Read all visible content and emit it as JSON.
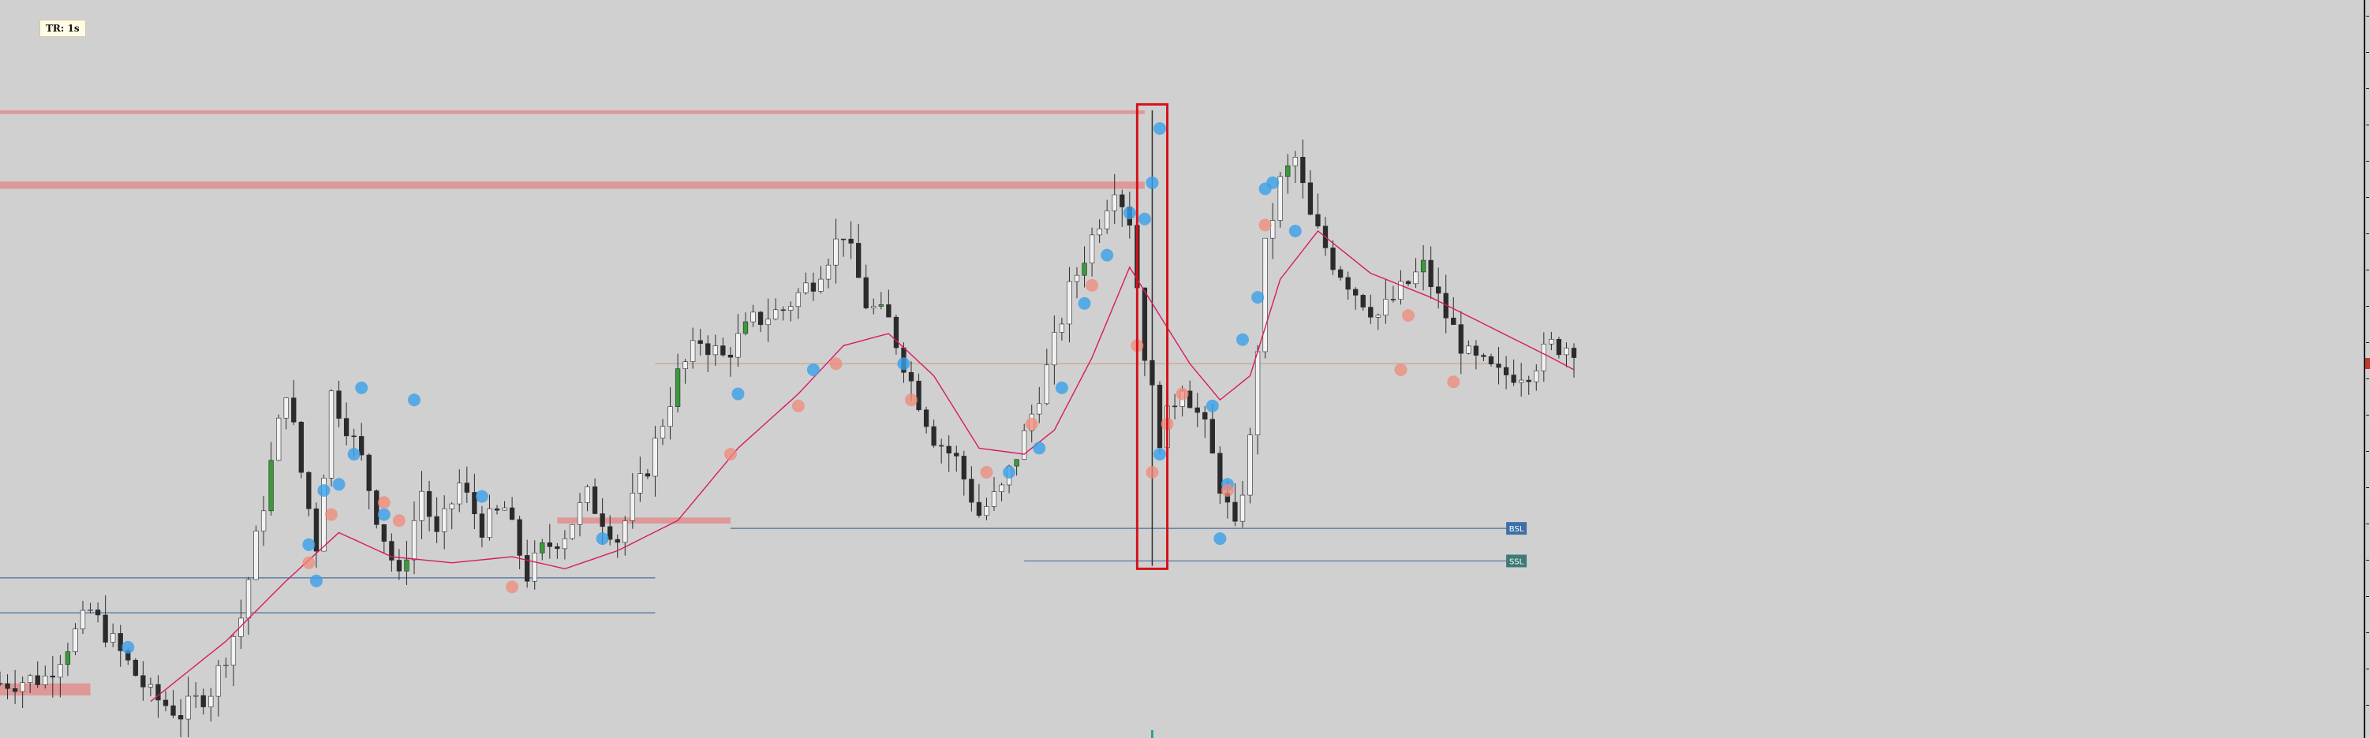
{
  "toolbar": {
    "timeframe_label": "TR: 1s"
  },
  "colors": {
    "background": "#d0d0d0",
    "candle_body": "#2b2b2b",
    "candle_up": "#3a9a3a",
    "moving_average": "#d81b60",
    "resistance_zone": "#e08e8e",
    "support_line": "#4a6f9a",
    "marker_blue": "#3aa0e8",
    "marker_red": "#f08a7a",
    "highlight_box": "#d4121a",
    "ref_line": "#c9a08a"
  },
  "levels": {
    "bsl_label": "BSL",
    "ssl_label": "SSL"
  },
  "chart_data": {
    "type": "line",
    "title": "",
    "xlabel": "",
    "ylabel": "",
    "ylim": [
      0,
      100
    ],
    "x_count": 210,
    "price_path_knots": [
      [
        0,
        5
      ],
      [
        6,
        6
      ],
      [
        12,
        17
      ],
      [
        16,
        10
      ],
      [
        20,
        3
      ],
      [
        24,
        0
      ],
      [
        28,
        4
      ],
      [
        32,
        16
      ],
      [
        35,
        35
      ],
      [
        38,
        54
      ],
      [
        40,
        40
      ],
      [
        42,
        28
      ],
      [
        44,
        53
      ],
      [
        46,
        48
      ],
      [
        48,
        42
      ],
      [
        50,
        33
      ],
      [
        53,
        22
      ],
      [
        56,
        37
      ],
      [
        58,
        29
      ],
      [
        61,
        38
      ],
      [
        64,
        31
      ],
      [
        67,
        34
      ],
      [
        70,
        23
      ],
      [
        72,
        27
      ],
      [
        75,
        30
      ],
      [
        78,
        36
      ],
      [
        82,
        29
      ],
      [
        86,
        41
      ],
      [
        90,
        56
      ],
      [
        93,
        62
      ],
      [
        96,
        59
      ],
      [
        100,
        65
      ],
      [
        104,
        67
      ],
      [
        108,
        72
      ],
      [
        112,
        80
      ],
      [
        115,
        68
      ],
      [
        118,
        65
      ],
      [
        121,
        55
      ],
      [
        124,
        46
      ],
      [
        127,
        42
      ],
      [
        130,
        33
      ],
      [
        133,
        37
      ],
      [
        136,
        46
      ],
      [
        139,
        57
      ],
      [
        142,
        70
      ],
      [
        145,
        79
      ],
      [
        148,
        88
      ],
      [
        150,
        82
      ],
      [
        152,
        60
      ],
      [
        154,
        46
      ],
      [
        157,
        55
      ],
      [
        160,
        47
      ],
      [
        162,
        38
      ],
      [
        164,
        30
      ],
      [
        166,
        45
      ],
      [
        168,
        77
      ],
      [
        170,
        88
      ],
      [
        172,
        92
      ],
      [
        174,
        82
      ],
      [
        177,
        75
      ],
      [
        180,
        70
      ],
      [
        183,
        66
      ],
      [
        186,
        70
      ],
      [
        189,
        74
      ],
      [
        192,
        66
      ],
      [
        195,
        59
      ],
      [
        199,
        56
      ],
      [
        203,
        57
      ],
      [
        206,
        61
      ],
      [
        209,
        61
      ]
    ],
    "ma_knots": [
      [
        20,
        2
      ],
      [
        30,
        12
      ],
      [
        38,
        22
      ],
      [
        45,
        30
      ],
      [
        52,
        26
      ],
      [
        60,
        25
      ],
      [
        68,
        26
      ],
      [
        75,
        24
      ],
      [
        82,
        27
      ],
      [
        90,
        32
      ],
      [
        98,
        44
      ],
      [
        106,
        53
      ],
      [
        112,
        61
      ],
      [
        118,
        63
      ],
      [
        124,
        56
      ],
      [
        130,
        44
      ],
      [
        136,
        43
      ],
      [
        140,
        47
      ],
      [
        145,
        59
      ],
      [
        150,
        74
      ],
      [
        154,
        66
      ],
      [
        158,
        58
      ],
      [
        162,
        52
      ],
      [
        166,
        56
      ],
      [
        170,
        72
      ],
      [
        175,
        80
      ],
      [
        182,
        73
      ],
      [
        190,
        69
      ],
      [
        198,
        64
      ],
      [
        206,
        59
      ],
      [
        209,
        57
      ]
    ],
    "resistance_zones": [
      {
        "x_start": 0,
        "x_end": 152,
        "y_low": 99.4,
        "y_high": 100
      },
      {
        "x_start": 0,
        "x_end": 152,
        "y_low": 87,
        "y_high": 88.2
      },
      {
        "x_start": 74,
        "x_end": 97,
        "y_low": 31.5,
        "y_high": 32.5
      },
      {
        "x_start": 0,
        "x_end": 12,
        "y_low": 3,
        "y_high": 5
      }
    ],
    "horizontal_levels": [
      {
        "name": "ref",
        "x_start": 87,
        "x_end": 199,
        "y": 58
      },
      {
        "name": "bsl",
        "x_start": 97,
        "x_end": 200,
        "y": 30.7
      },
      {
        "name": "ssl",
        "x_start": 136,
        "x_end": 200,
        "y": 25.3
      },
      {
        "name": "support-1",
        "x_start": 0,
        "x_end": 87,
        "y": 22.5
      },
      {
        "name": "support-2",
        "x_start": 0,
        "x_end": 87,
        "y": 16.7
      }
    ],
    "highlight_box": {
      "x_start": 151,
      "x_end": 155,
      "y_low": 24,
      "y_high": 101
    },
    "blue_markers": [
      [
        154,
        97
      ],
      [
        153,
        88
      ],
      [
        152,
        82
      ],
      [
        150,
        83
      ],
      [
        147,
        76
      ],
      [
        144,
        68
      ],
      [
        141,
        54
      ],
      [
        138,
        44
      ],
      [
        134,
        40
      ],
      [
        98,
        53
      ],
      [
        48,
        54
      ],
      [
        47,
        43
      ],
      [
        45,
        38
      ],
      [
        43,
        37
      ],
      [
        42,
        22
      ],
      [
        55,
        52
      ],
      [
        154,
        43
      ],
      [
        162,
        29
      ],
      [
        163,
        38
      ],
      [
        161,
        51
      ],
      [
        167,
        69
      ],
      [
        168,
        87
      ],
      [
        169,
        88
      ],
      [
        172,
        80
      ],
      [
        165,
        62
      ],
      [
        108,
        57
      ],
      [
        120,
        58
      ],
      [
        80,
        29
      ],
      [
        64,
        36
      ],
      [
        51,
        33
      ],
      [
        17,
        11
      ],
      [
        41,
        28
      ]
    ],
    "red_markers": [
      [
        111,
        58
      ],
      [
        121,
        52
      ],
      [
        153,
        40
      ],
      [
        157,
        53
      ],
      [
        163,
        37
      ],
      [
        155,
        48
      ],
      [
        168,
        81
      ],
      [
        186,
        57
      ],
      [
        193,
        55
      ],
      [
        187,
        66
      ],
      [
        137,
        48
      ],
      [
        131,
        40
      ],
      [
        106,
        51
      ],
      [
        51,
        35
      ],
      [
        53,
        32
      ],
      [
        44,
        33
      ],
      [
        41,
        25
      ],
      [
        68,
        21
      ],
      [
        97,
        43
      ],
      [
        145,
        71
      ],
      [
        151,
        61
      ]
    ]
  }
}
